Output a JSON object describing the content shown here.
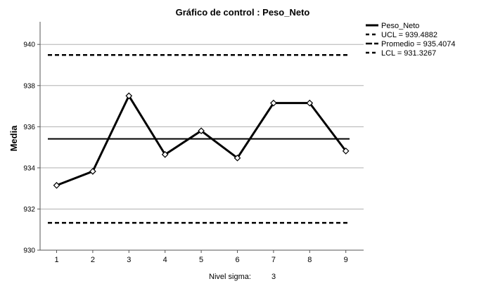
{
  "chart_data": {
    "type": "line",
    "title": "Gráfico de control : Peso_Neto",
    "ylabel": "Media",
    "xlabel": "",
    "categories": [
      "1",
      "2",
      "3",
      "4",
      "5",
      "6",
      "7",
      "8",
      "9"
    ],
    "series": [
      {
        "name": "Peso_Neto",
        "values": [
          933.15,
          933.83,
          937.5,
          934.65,
          935.8,
          934.48,
          937.15,
          937.15,
          934.82
        ]
      }
    ],
    "control_lines": {
      "ucl": {
        "label": "UCL = 939.4882",
        "value": 939.4882
      },
      "center": {
        "label": "Promedio = 935.4074",
        "value": 935.4074
      },
      "lcl": {
        "label": "LCL = 931.3267",
        "value": 931.3267
      }
    },
    "ylim": [
      930,
      941.1
    ],
    "yticks": [
      930,
      932,
      934,
      936,
      938,
      940
    ],
    "grid": "horizontal",
    "legend_position": "top-right",
    "footer": {
      "label": "Nivel sigma:",
      "value": "3"
    },
    "colors": {
      "line": "#000000",
      "grid": "#b0b0b0",
      "axis": "#555555"
    }
  }
}
